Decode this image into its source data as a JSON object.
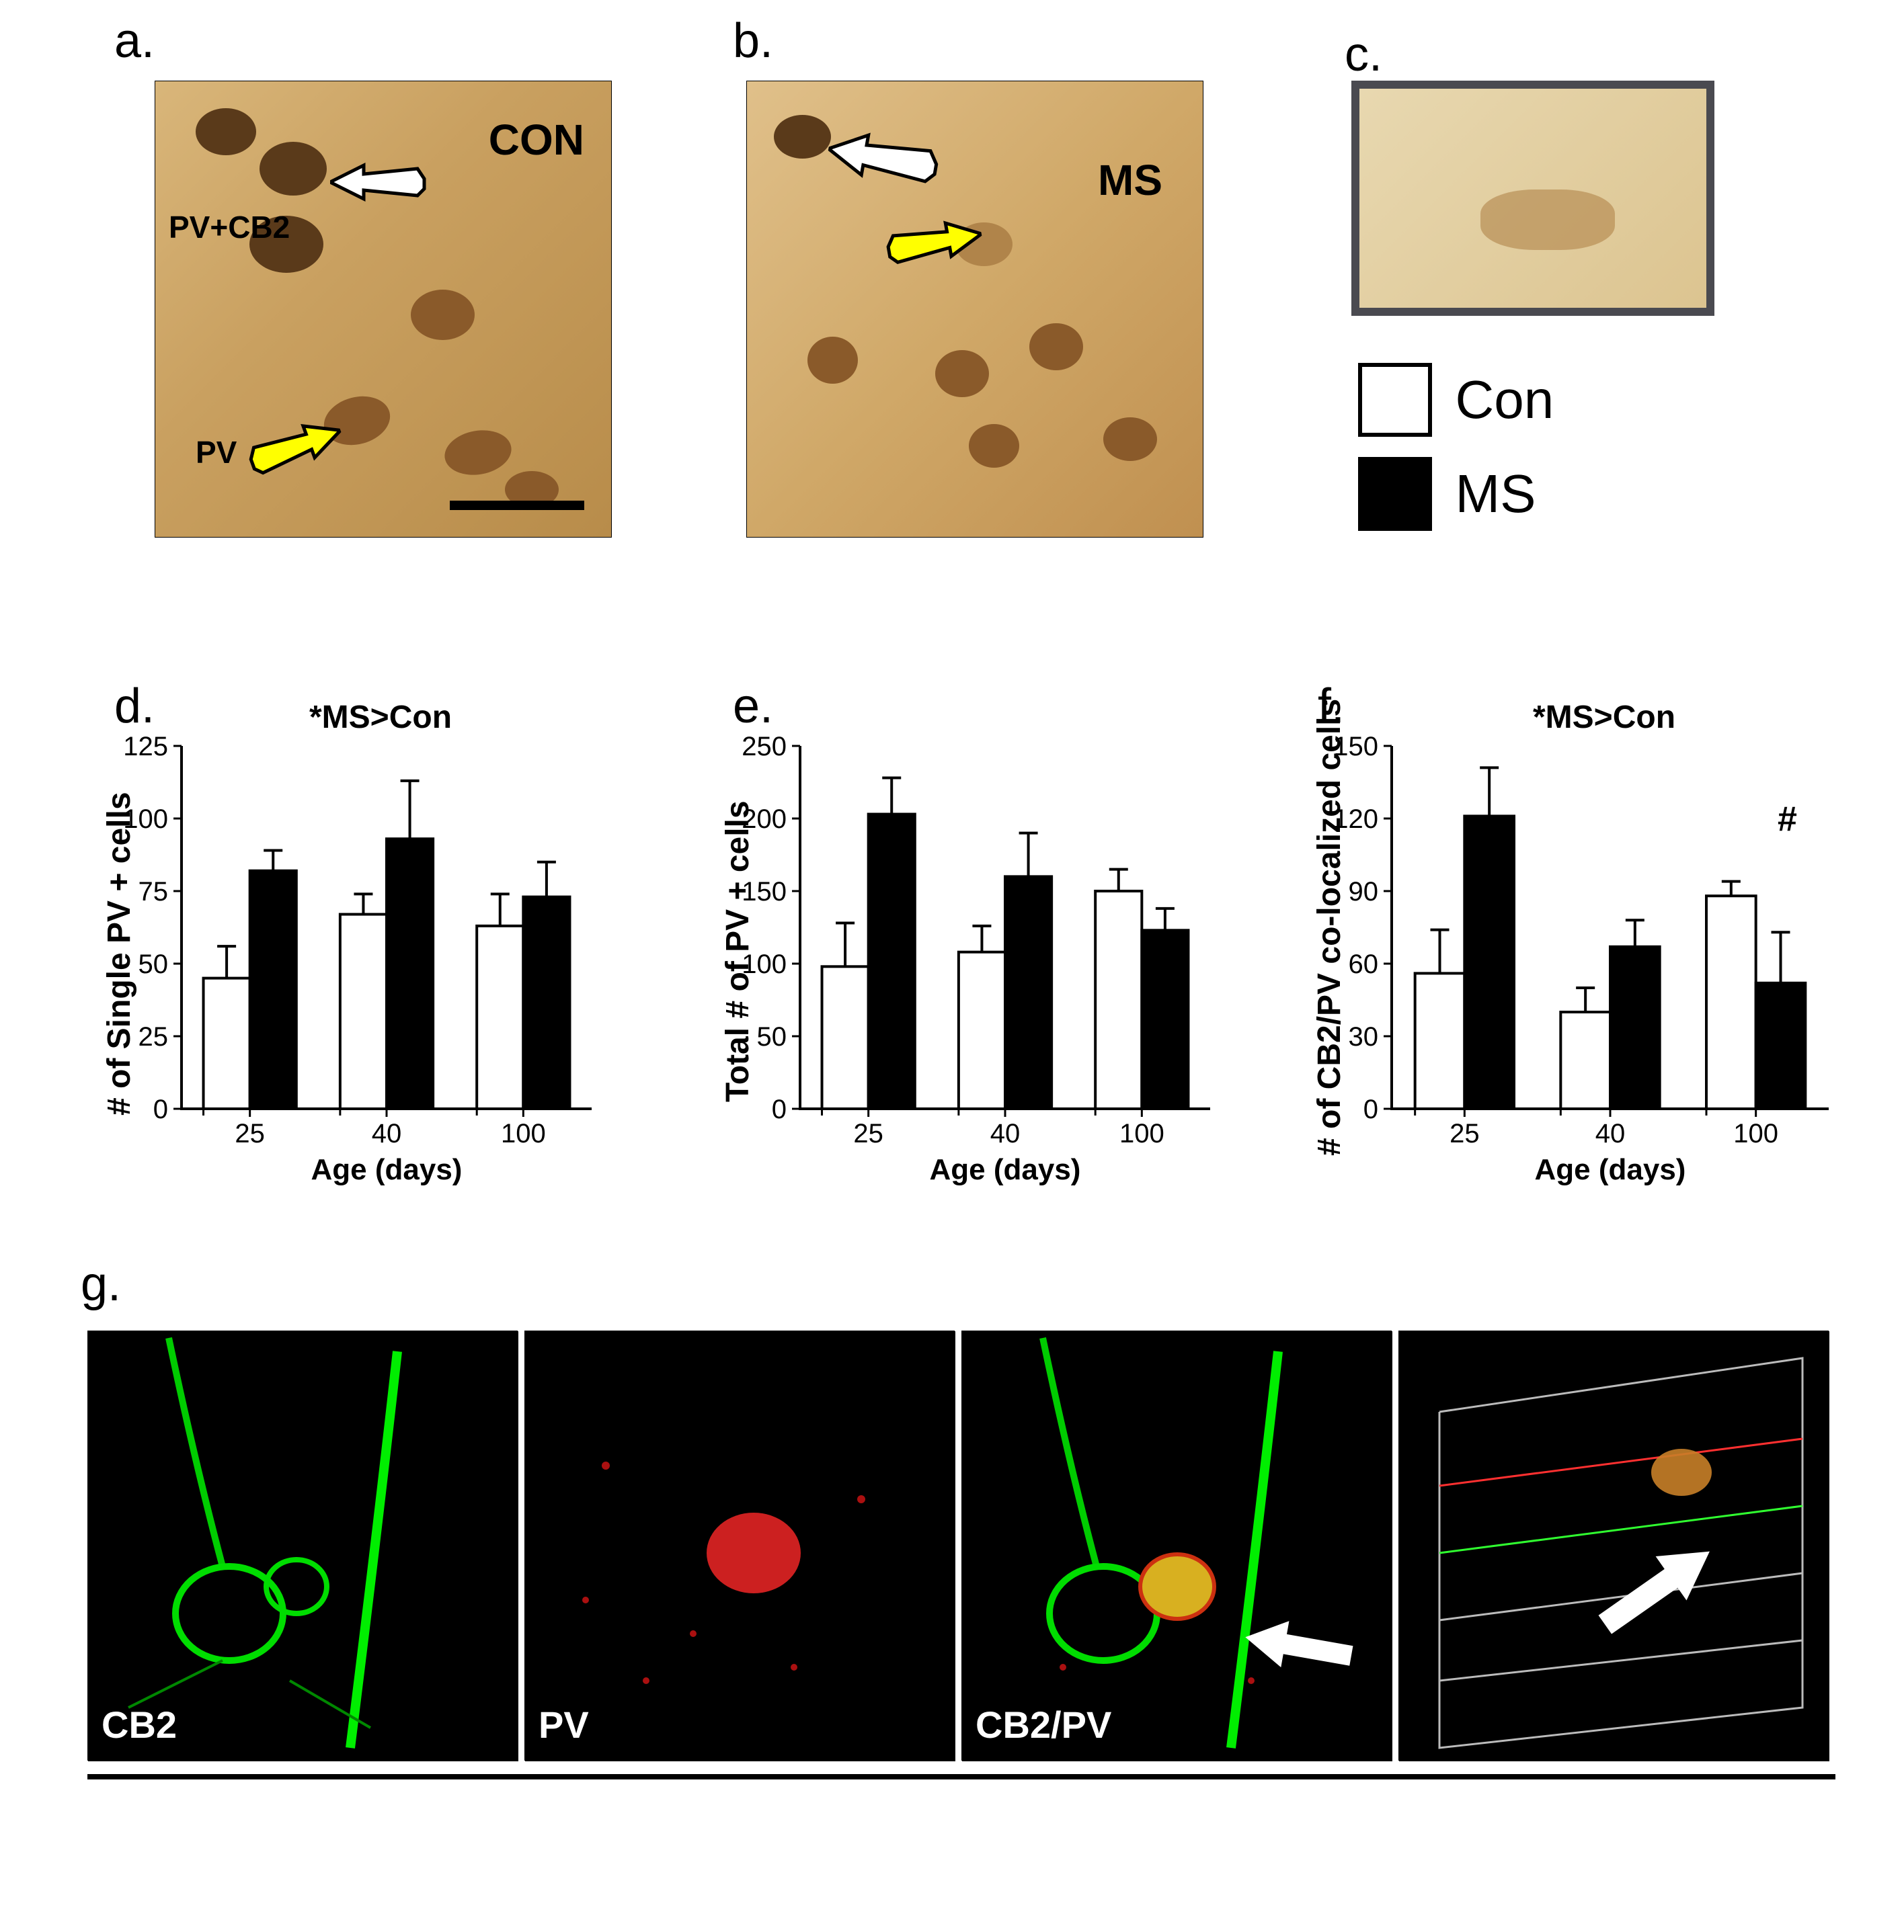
{
  "panelLabels": {
    "a": "a.",
    "b": "b.",
    "c": "c.",
    "d": "d.",
    "e": "e.",
    "f": "f.",
    "g": "g."
  },
  "micro_a": {
    "tag": "CON",
    "label_pvcb2": "PV+CB2",
    "label_pv": "PV",
    "tag_fontsize": 64,
    "label_fontsize": 46
  },
  "micro_b": {
    "tag": "MS",
    "tag_fontsize": 64
  },
  "legend": {
    "con": {
      "label": "Con",
      "color": "#ffffff",
      "border": "#000000"
    },
    "ms": {
      "label": "MS",
      "color": "#000000",
      "border": "#000000"
    },
    "fontsize": 80
  },
  "chart_d": {
    "type": "bar",
    "title": "*MS>Con",
    "ylabel": "# of Single PV + cells",
    "xlabel": "Age (days)",
    "categories": [
      "25",
      "40",
      "100"
    ],
    "groups": [
      "Con",
      "MS"
    ],
    "values": {
      "Con": [
        45,
        67,
        63
      ],
      "MS": [
        82,
        93,
        73
      ]
    },
    "errors": {
      "Con": [
        11,
        7,
        11
      ],
      "MS": [
        7,
        20,
        12
      ]
    },
    "bar_colors": {
      "Con": "#ffffff",
      "MS": "#000000"
    },
    "ylim": [
      0,
      125
    ],
    "ytick_step": 25,
    "background_color": "#ffffff",
    "axis_color": "#000000",
    "bar_width": 0.34,
    "title_fontsize": 48,
    "label_fontsize": 48,
    "tick_fontsize": 40
  },
  "chart_e": {
    "type": "bar",
    "title": "",
    "ylabel": "Total # of PV + cells",
    "xlabel": "Age (days)",
    "categories": [
      "25",
      "40",
      "100"
    ],
    "groups": [
      "Con",
      "MS"
    ],
    "values": {
      "Con": [
        98,
        108,
        150
      ],
      "MS": [
        203,
        160,
        123
      ]
    },
    "errors": {
      "Con": [
        30,
        18,
        15
      ],
      "MS": [
        25,
        30,
        15
      ]
    },
    "bar_colors": {
      "Con": "#ffffff",
      "MS": "#000000"
    },
    "ylim": [
      0,
      250
    ],
    "ytick_step": 50,
    "background_color": "#ffffff",
    "axis_color": "#000000",
    "bar_width": 0.34,
    "title_fontsize": 48,
    "label_fontsize": 48,
    "tick_fontsize": 40
  },
  "chart_f": {
    "type": "bar",
    "title": "*MS>Con",
    "ylabel": "# of CB2/PV co-localized cells",
    "xlabel": "Age (days)",
    "categories": [
      "25",
      "40",
      "100"
    ],
    "groups": [
      "Con",
      "MS"
    ],
    "values": {
      "Con": [
        56,
        40,
        88
      ],
      "MS": [
        121,
        67,
        52
      ]
    },
    "errors": {
      "Con": [
        18,
        10,
        6
      ],
      "MS": [
        20,
        11,
        21
      ]
    },
    "bar_colors": {
      "Con": "#ffffff",
      "MS": "#000000"
    },
    "ylim": [
      0,
      150
    ],
    "ytick_step": 30,
    "annotation": {
      "text": "#",
      "category_index": 2,
      "group": "MS",
      "y": 115
    },
    "background_color": "#ffffff",
    "axis_color": "#000000",
    "bar_width": 0.34,
    "title_fontsize": 48,
    "label_fontsize": 48,
    "tick_fontsize": 40
  },
  "panel_g": {
    "images": [
      {
        "label": "CB2",
        "channel_color": "#00ff00"
      },
      {
        "label": "PV",
        "channel_color": "#ff0000"
      },
      {
        "label": "CB2/PV",
        "channel_color": "merged"
      },
      {
        "label": "",
        "channel_color": "3d"
      }
    ],
    "label_color": "#ffffff",
    "label_fontsize": 56
  },
  "colors": {
    "text": "#000000",
    "axis": "#000000",
    "white_arrow_fill": "#ffffff",
    "yellow_arrow_fill": "#ffff00",
    "arrow_stroke": "#000000",
    "micro_border": "#4a4a50"
  }
}
